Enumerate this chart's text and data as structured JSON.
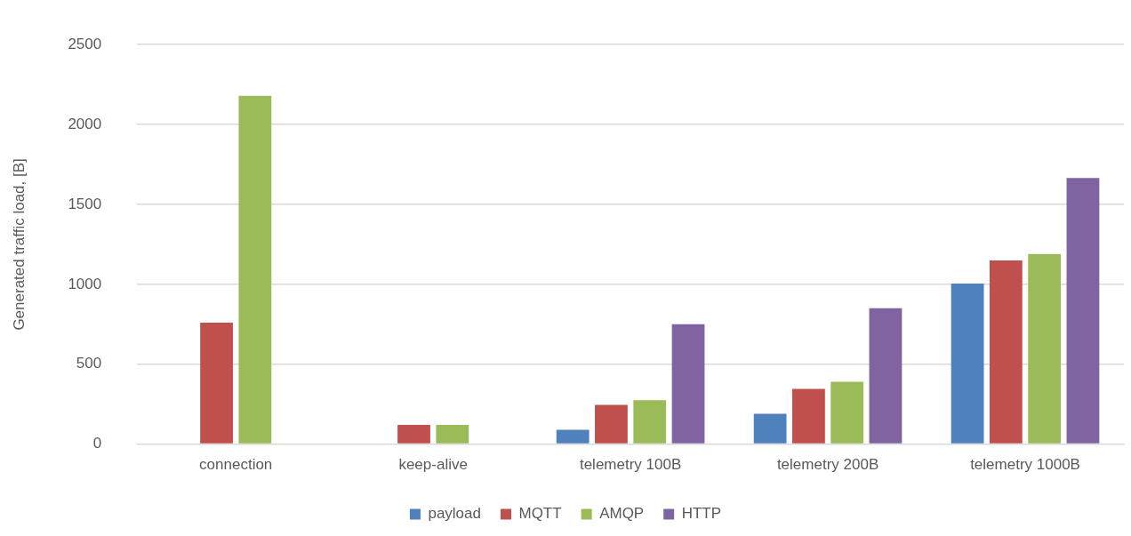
{
  "chart_data": {
    "type": "bar",
    "ylabel": "Generated traffic load, [B]",
    "categories": [
      "connection",
      "keep-alive",
      "telemetry 100B",
      "telemetry 200B",
      "telemetry 1000B"
    ],
    "series": [
      {
        "name": "payload",
        "color": "#4f81bd",
        "values": [
          null,
          null,
          90,
          190,
          1005
        ]
      },
      {
        "name": "MQTT",
        "color": "#c0504d",
        "values": [
          760,
          120,
          245,
          345,
          1150
        ]
      },
      {
        "name": "AMQP",
        "color": "#9bbb59",
        "values": [
          2180,
          120,
          275,
          390,
          1190
        ]
      },
      {
        "name": "HTTP",
        "color": "#8064a2",
        "values": [
          null,
          null,
          750,
          850,
          1665
        ]
      }
    ],
    "ylim": [
      0,
      2500
    ],
    "yticks": [
      0,
      500,
      1000,
      1500,
      2000,
      2500
    ],
    "grid": "y",
    "legend": "bottom"
  }
}
